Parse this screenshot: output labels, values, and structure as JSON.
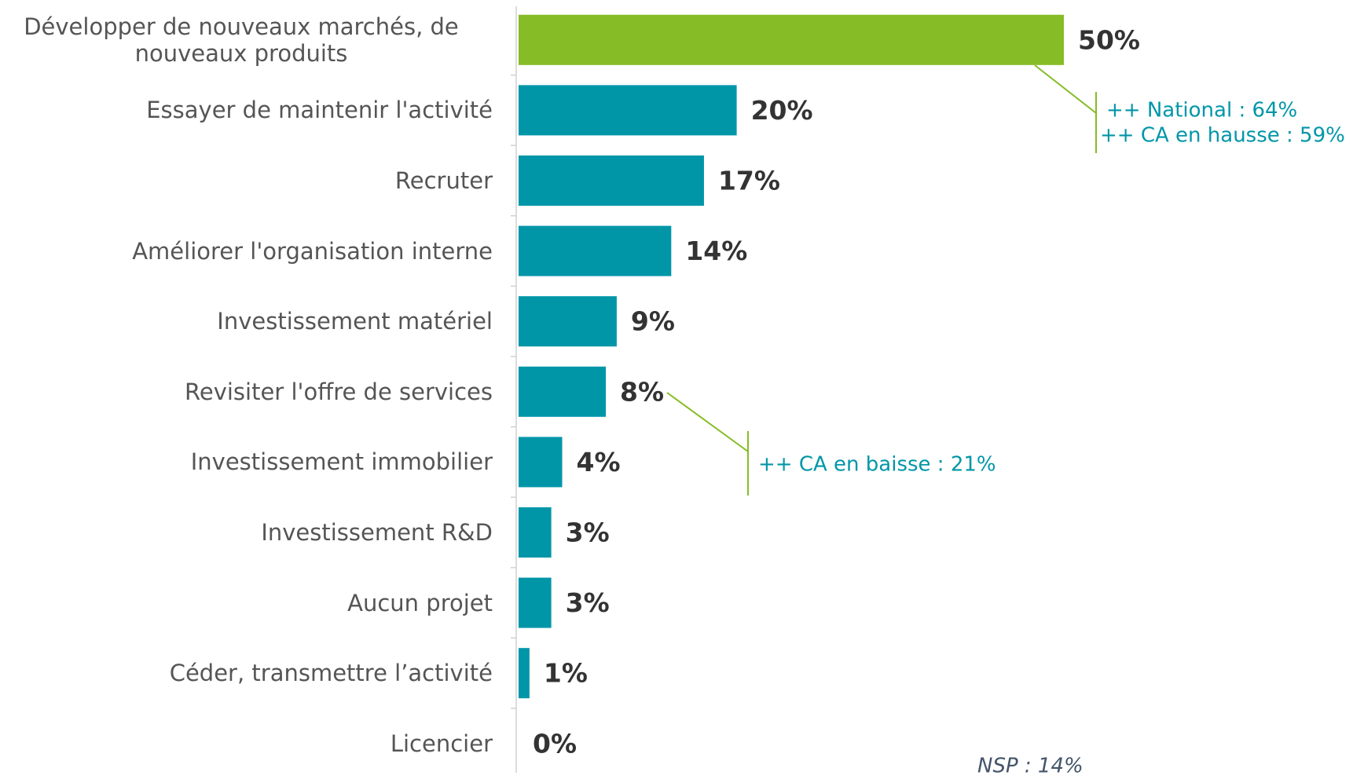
{
  "chart_data": {
    "type": "bar",
    "orientation": "horizontal",
    "categories": [
      "Développer de nouveaux marchés, de nouveaux produits",
      "Essayer de maintenir l'activité",
      "Recruter",
      "Améliorer l'organisation interne",
      "Investissement matériel",
      "Revisiter l'offre de services",
      "Investissement immobilier",
      "Investissement R&D",
      "Aucun projet",
      "Céder, transmettre l’activité",
      "Licencier"
    ],
    "values": [
      50,
      20,
      17,
      14,
      9,
      8,
      4,
      3,
      3,
      1,
      0
    ],
    "value_labels": [
      "50%",
      "20%",
      "17%",
      "14%",
      "9%",
      "8%",
      "4%",
      "3%",
      "3%",
      "1%",
      "0%"
    ],
    "colors": [
      "#86bc25",
      "#0096a8",
      "#0096a8",
      "#0096a8",
      "#0096a8",
      "#0096a8",
      "#0096a8",
      "#0096a8",
      "#0096a8",
      "#0096a8",
      "#0096a8"
    ],
    "xlim": [
      0,
      50
    ],
    "annotations": [
      "++ National : 64%",
      "++ CA en hausse : 59%",
      "++ CA en baisse : 21%",
      "NSP : 14%"
    ]
  }
}
